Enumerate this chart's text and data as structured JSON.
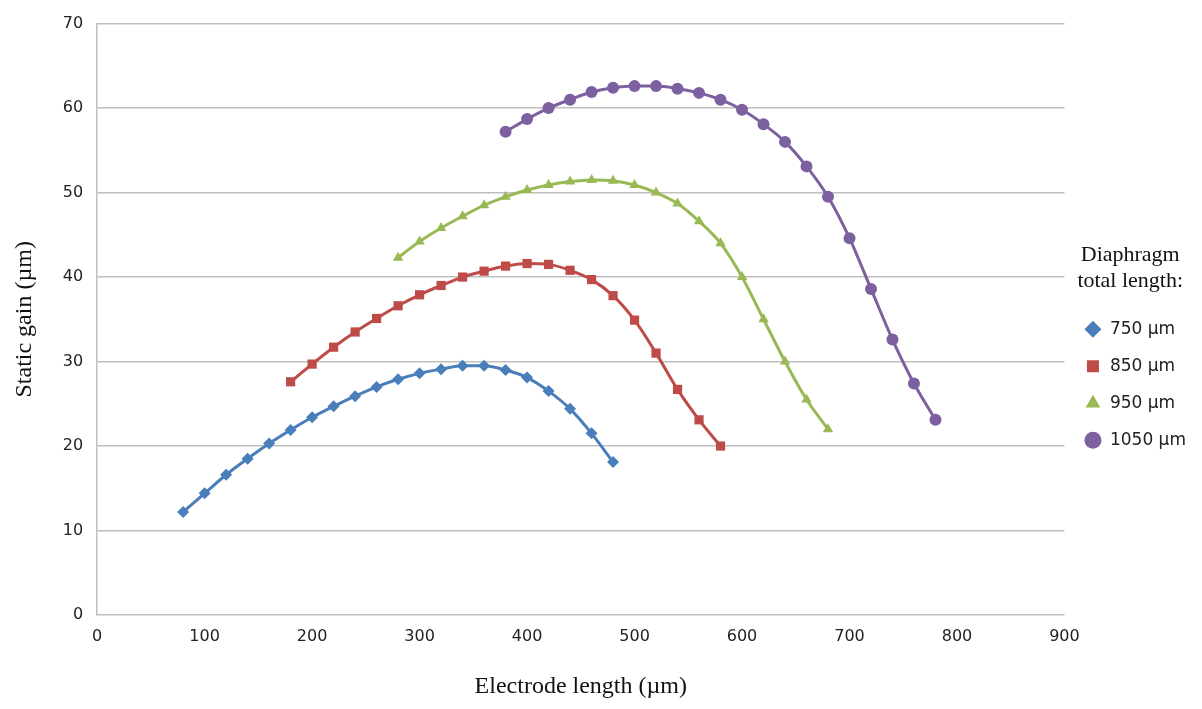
{
  "chart_data": {
    "type": "line",
    "xlabel": "Electrode length (µm)",
    "ylabel": "Static gain (µm)",
    "legend_title": "Diaphragm total length:",
    "series": [
      {
        "name": "750 µm",
        "color": "#4a7ebb",
        "marker": "diamond",
        "x": [
          80,
          100,
          120,
          140,
          160,
          180,
          200,
          220,
          240,
          260,
          280,
          300,
          320,
          340,
          360,
          380,
          400,
          420,
          440,
          460,
          480
        ],
        "values": [
          12.2,
          14.4,
          16.6,
          18.5,
          20.3,
          21.9,
          23.4,
          24.7,
          25.9,
          27.0,
          27.9,
          28.6,
          29.1,
          29.5,
          29.5,
          29.0,
          28.1,
          26.5,
          24.4,
          21.5,
          18.1
        ]
      },
      {
        "name": "850 µm",
        "color": "#be4b48",
        "marker": "square",
        "x": [
          180,
          200,
          220,
          240,
          260,
          280,
          300,
          320,
          340,
          360,
          380,
          400,
          420,
          440,
          460,
          480,
          500,
          520,
          540,
          560,
          580
        ],
        "values": [
          27.6,
          29.7,
          31.7,
          33.5,
          35.1,
          36.6,
          37.9,
          39.0,
          40.0,
          40.7,
          41.3,
          41.6,
          41.5,
          40.8,
          39.7,
          37.8,
          34.9,
          31.0,
          26.7,
          23.1,
          20.0
        ]
      },
      {
        "name": "950 µm",
        "color": "#98b954",
        "marker": "triangle",
        "x": [
          280,
          300,
          320,
          340,
          360,
          380,
          400,
          420,
          440,
          460,
          480,
          500,
          520,
          540,
          560,
          580,
          600,
          620,
          640,
          660,
          680
        ],
        "values": [
          42.3,
          44.2,
          45.8,
          47.2,
          48.5,
          49.5,
          50.3,
          50.9,
          51.3,
          51.5,
          51.4,
          50.9,
          50.0,
          48.7,
          46.6,
          44.0,
          40.0,
          35.0,
          30.0,
          25.5,
          22.0
        ]
      },
      {
        "name": "1050 µm",
        "color": "#7d60a0",
        "marker": "circle",
        "x": [
          380,
          400,
          420,
          440,
          460,
          480,
          500,
          520,
          540,
          560,
          580,
          600,
          620,
          640,
          660,
          680,
          700,
          720,
          740,
          760,
          780
        ],
        "values": [
          57.2,
          58.7,
          60.0,
          61.0,
          61.9,
          62.4,
          62.6,
          62.6,
          62.3,
          61.8,
          61.0,
          59.8,
          58.1,
          56.0,
          53.1,
          49.5,
          44.6,
          38.6,
          32.6,
          27.4,
          23.1
        ]
      }
    ],
    "xlim": [
      0,
      900
    ],
    "xticks": [
      0,
      100,
      200,
      300,
      400,
      500,
      600,
      700,
      800,
      900
    ],
    "ylim": [
      0,
      70
    ],
    "yticks": [
      0,
      10,
      20,
      30,
      40,
      50,
      60,
      70
    ],
    "grid": "y",
    "legend": "right",
    "line_style": "solid"
  }
}
